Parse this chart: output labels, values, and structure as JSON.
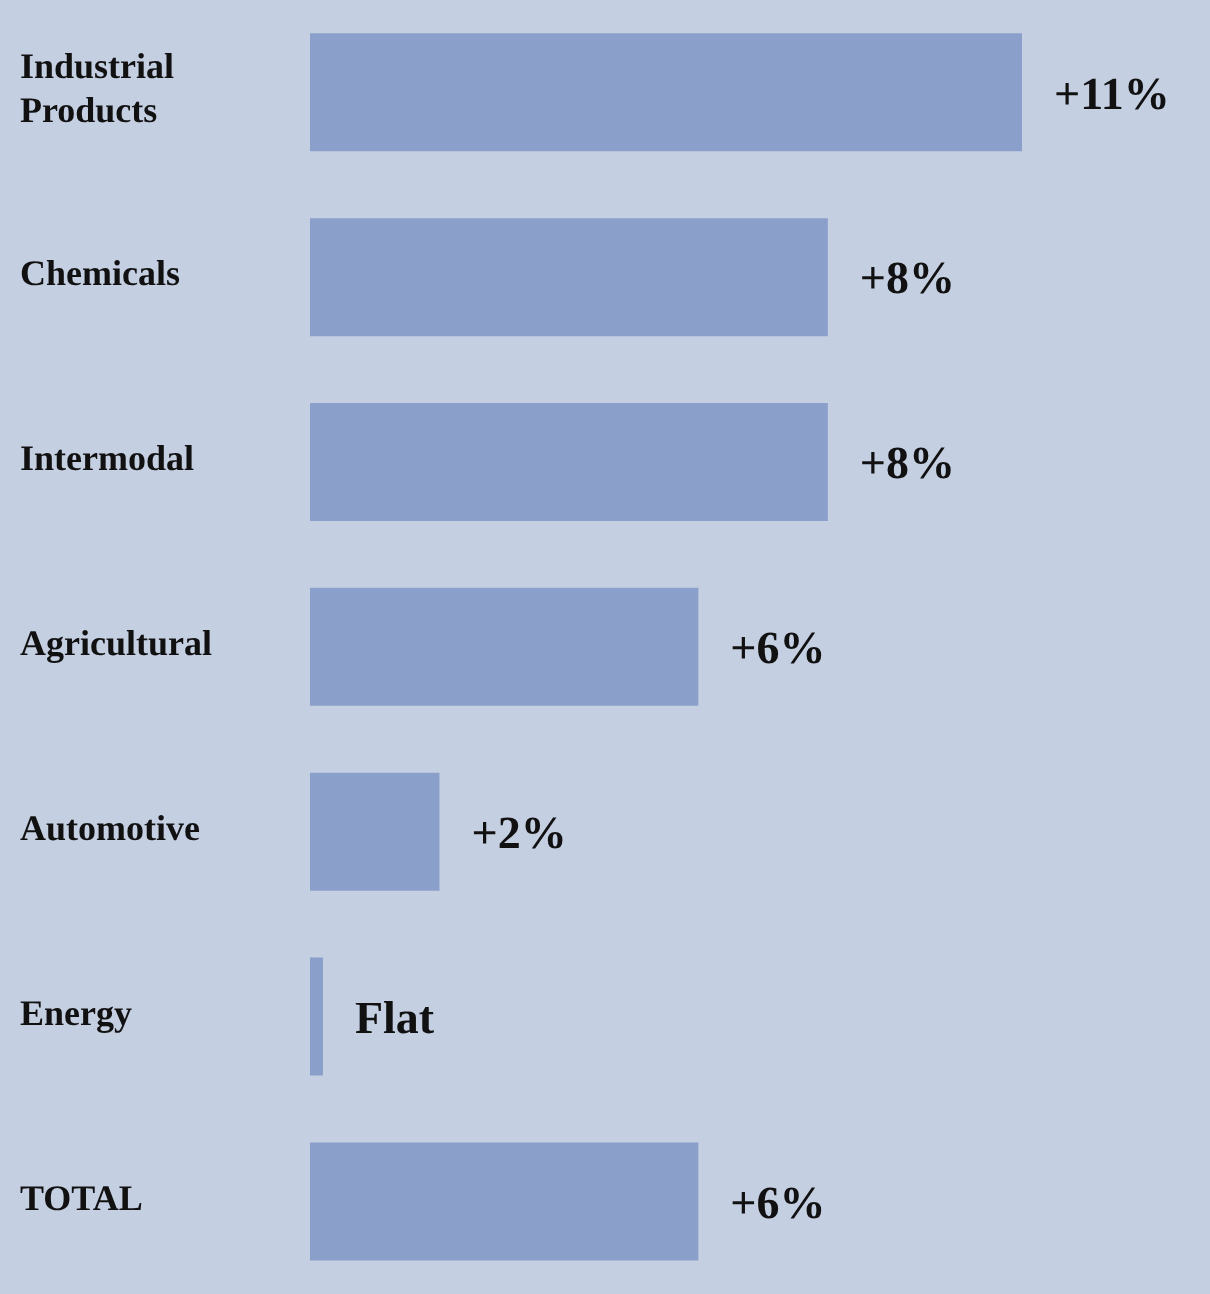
{
  "chart_data": {
    "type": "bar",
    "orientation": "horizontal",
    "categories": [
      "Industrial Products",
      "Chemicals",
      "Intermodal",
      "Agricultural",
      "Automotive",
      "Energy",
      "TOTAL"
    ],
    "values": [
      11,
      8,
      8,
      6,
      2,
      0.2,
      6
    ],
    "value_labels": [
      "+11%",
      "+8%",
      "+8%",
      "+6%",
      "+2%",
      "Flat",
      "+6%"
    ],
    "color": "#8a9fc9",
    "grid": false,
    "legend": false
  }
}
